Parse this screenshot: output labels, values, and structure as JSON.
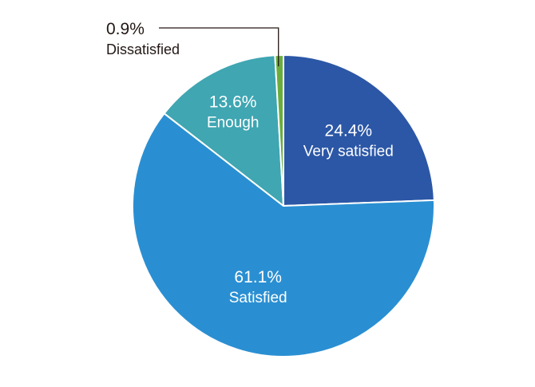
{
  "chart_data": {
    "type": "pie",
    "slices": [
      {
        "label": "Very satisfied",
        "value": 24.4,
        "value_label": "24.4%",
        "color": "#2c57a6",
        "label_color": "#ffffff",
        "label_placement": "inside"
      },
      {
        "label": "Satisfied",
        "value": 61.1,
        "value_label": "61.1%",
        "color": "#2a8fd2",
        "label_color": "#ffffff",
        "label_placement": "inside"
      },
      {
        "label": "Enough",
        "value": 13.6,
        "value_label": "13.6%",
        "color": "#3fa6b2",
        "label_color": "#ffffff",
        "label_placement": "inside"
      },
      {
        "label": "Dissatisfied",
        "value": 0.9,
        "value_label": "0.9%",
        "color": "#6aad3d",
        "label_color": "#231815",
        "label_placement": "outside-callout"
      }
    ],
    "start": "12 o'clock",
    "direction": "clockwise",
    "legend": "none"
  }
}
